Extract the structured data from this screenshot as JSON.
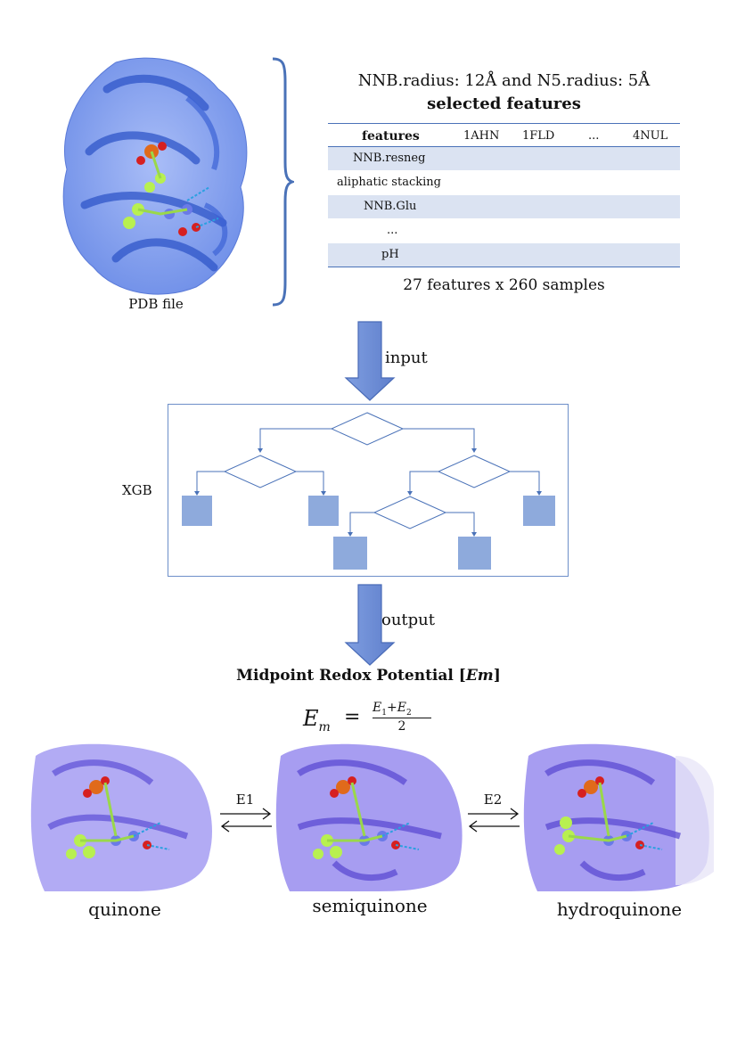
{
  "top_section": {
    "pdb_label": "PDB file",
    "params_line": "NNB.radius: 12Å and N5.radius: 5Å",
    "table_title": "selected features",
    "columns": [
      "features",
      "1AHN",
      "1FLD",
      "...",
      "4NUL"
    ],
    "rows": [
      "NNB.resneg",
      "aliphatic stacking",
      "NNB.Glu",
      "...",
      "pH"
    ],
    "summary": "27 features x 260 samples"
  },
  "flow": {
    "input_label": "input",
    "model_label": "XGB",
    "output_label": "output"
  },
  "result": {
    "title_prefix": "Midpoint Redox Potential [",
    "title_em": "Em",
    "title_suffix": "]",
    "equation": {
      "lhs_base": "E",
      "lhs_sub": "m",
      "eq": "=",
      "num_a": "E",
      "num_a_sub": "1",
      "plus": "+",
      "num_b": "E",
      "num_b_sub": "2",
      "den": "2"
    }
  },
  "states": {
    "labels": [
      "quinone",
      "semiquinone",
      "hydroquinone"
    ],
    "arrow_1": "E1",
    "arrow_2": "E2"
  },
  "colors": {
    "accent": "#4a72b8",
    "table_shade": "#dbe3f2",
    "leaf": "#8eaadc",
    "protein_blue": "#7f9ef0",
    "protein_purple": "#8f84ee"
  }
}
